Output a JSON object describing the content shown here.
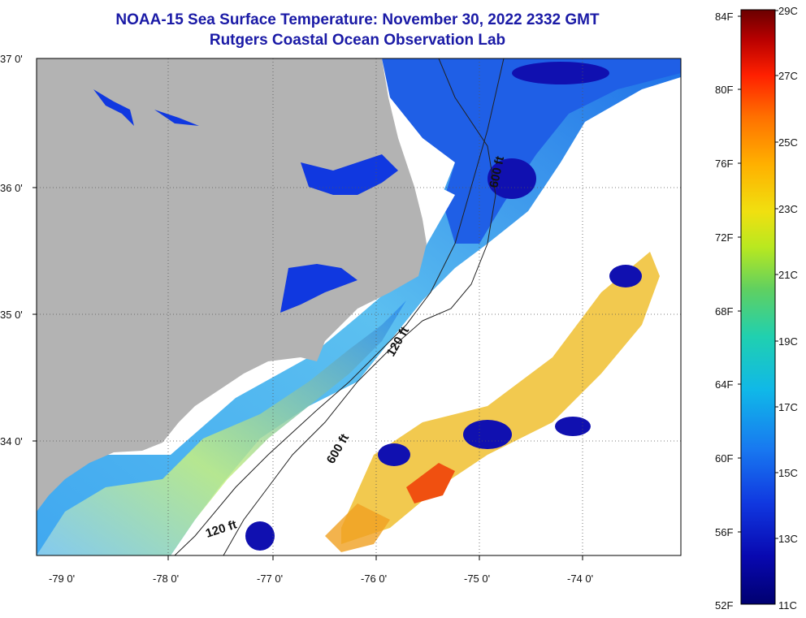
{
  "header": {
    "title": "NOAA-15 Sea Surface Temperature:  November 30, 2022 2332 GMT",
    "subtitle": "Rutgers Coastal Ocean Observation Lab"
  },
  "axes": {
    "lat_labels": [
      "37 0'",
      "36 0'",
      "35 0'",
      "34 0'"
    ],
    "lon_labels": [
      "-79 0'",
      "-78 0'",
      "-77 0'",
      "-76 0'",
      "-75 0'",
      "-74 0'"
    ]
  },
  "contours": {
    "labels": [
      "600 ft",
      "120 ft",
      "600 ft",
      "120 ft"
    ]
  },
  "colorbar": {
    "fahrenheit_labels": [
      "84F",
      "80F",
      "76F",
      "72F",
      "68F",
      "64F",
      "60F",
      "56F",
      "52F"
    ],
    "celsius_labels": [
      "29C",
      "27C",
      "25C",
      "23C",
      "21C",
      "19C",
      "17C",
      "15C",
      "13C",
      "11C"
    ],
    "colors": [
      "#6a0000",
      "#b80000",
      "#ff2000",
      "#ff7000",
      "#ffb000",
      "#f0e010",
      "#b8e820",
      "#60d060",
      "#20d0b0",
      "#10b8e8",
      "#1878f0",
      "#1038e0",
      "#0808b0",
      "#000070"
    ]
  },
  "colors": {
    "land": "#b3b3b3",
    "no_data": "#ffffff",
    "title_text": "#1a1aa6",
    "grid": "#444444"
  }
}
